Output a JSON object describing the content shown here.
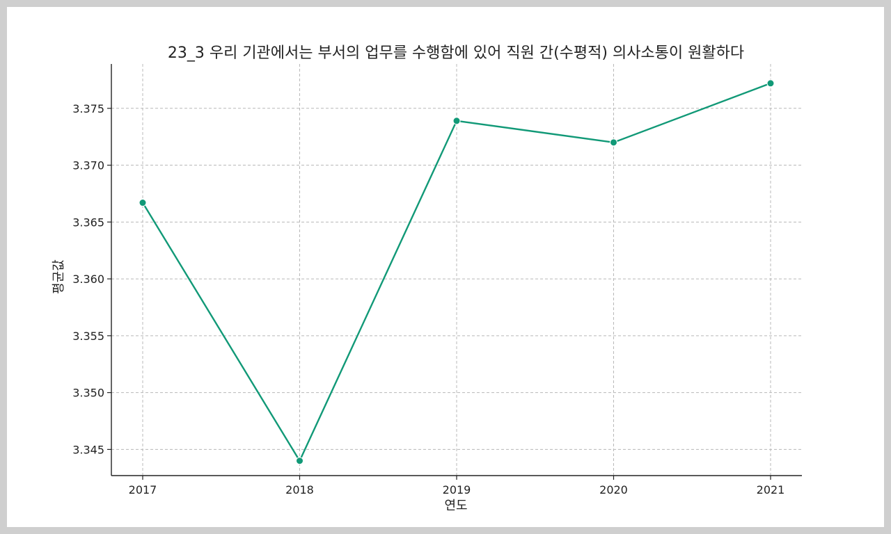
{
  "chart_data": {
    "type": "line",
    "title": "23_3 우리 기관에서는 부서의 업무를 수행함에 있어 직원 간(수평적) 의사소통이 원활하다",
    "xlabel": "연도",
    "ylabel": "평균값",
    "categories": [
      "2017",
      "2018",
      "2019",
      "2020",
      "2021"
    ],
    "series": [
      {
        "values": [
          3.3667,
          3.344,
          3.3739,
          3.372,
          3.3772
        ]
      }
    ],
    "yticks": [
      "3.345",
      "3.350",
      "3.355",
      "3.360",
      "3.365",
      "3.370",
      "3.375"
    ],
    "ylim": [
      3.3427,
      3.3789
    ],
    "grid": true,
    "line_color": "#119977",
    "marker": "circle"
  }
}
